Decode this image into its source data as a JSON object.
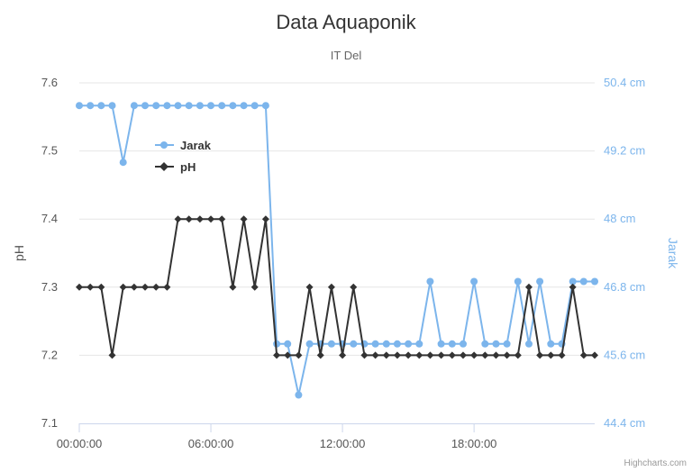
{
  "chart_data": {
    "type": "line",
    "title": "Data Aquaponik",
    "subtitle": "IT Del",
    "credits": "Highcharts.com",
    "grid": true,
    "legend": {
      "placement": "top-left-inside",
      "order": [
        "Jarak",
        "pH"
      ]
    },
    "x_axis": {
      "unit": "hour",
      "range": [
        0,
        24
      ],
      "tick_values": [
        0,
        6,
        12,
        18
      ],
      "tick_labels": [
        "00:00:00",
        "06:00:00",
        "12:00:00",
        "18:00:00"
      ]
    },
    "y_left": {
      "label": "pH",
      "range": [
        7.1,
        7.6
      ],
      "tick_values": [
        7.1,
        7.2,
        7.3,
        7.4,
        7.5,
        7.6
      ],
      "tick_labels": [
        "7.1",
        "7.2",
        "7.3",
        "7.4",
        "7.5",
        "7.6"
      ],
      "color": "#555555"
    },
    "y_right": {
      "label": "Jarak",
      "range": [
        44.4,
        50.4
      ],
      "tick_values": [
        44.4,
        45.6,
        46.8,
        48,
        49.2,
        50.4
      ],
      "tick_labels": [
        "44.4 cm",
        "45.6 cm",
        "46.8 cm",
        "48 cm",
        "49.2 cm",
        "50.4 cm"
      ],
      "color": "#7cb5ec"
    },
    "series": [
      {
        "name": "Jarak",
        "axis": "right",
        "color": "#7cb5ec",
        "marker": "circle",
        "x": [
          0,
          0.5,
          1,
          1.5,
          2,
          2.5,
          3,
          3.5,
          4,
          4.5,
          5,
          5.5,
          6,
          6.5,
          7,
          7.5,
          8,
          8.5,
          9,
          9.5,
          10,
          10.5,
          11,
          11.5,
          12,
          12.5,
          13,
          13.5,
          14,
          14.5,
          15,
          15.5,
          16,
          16.5,
          17,
          17.5,
          18,
          18.5,
          19,
          19.5,
          20,
          20.5,
          21,
          21.5,
          22,
          22.5,
          23,
          23.5
        ],
        "y": [
          50,
          50,
          50,
          50,
          49,
          50,
          50,
          50,
          50,
          50,
          50,
          50,
          50,
          50,
          50,
          50,
          50,
          50,
          45.8,
          45.8,
          44.9,
          45.8,
          45.8,
          45.8,
          45.8,
          45.8,
          45.8,
          45.8,
          45.8,
          45.8,
          45.8,
          45.8,
          46.9,
          45.8,
          45.8,
          45.8,
          46.9,
          45.8,
          45.8,
          45.8,
          46.9,
          45.8,
          46.9,
          45.8,
          45.8,
          46.9,
          46.9,
          46.9
        ]
      },
      {
        "name": "pH",
        "axis": "left",
        "color": "#333333",
        "marker": "diamond",
        "x": [
          0,
          0.5,
          1,
          1.5,
          2,
          2.5,
          3,
          3.5,
          4,
          4.5,
          5,
          5.5,
          6,
          6.5,
          7,
          7.5,
          8,
          8.5,
          9,
          9.5,
          10,
          10.5,
          11,
          11.5,
          12,
          12.5,
          13,
          13.5,
          14,
          14.5,
          15,
          15.5,
          16,
          16.5,
          17,
          17.5,
          18,
          18.5,
          19,
          19.5,
          20,
          20.5,
          21,
          21.5,
          22,
          22.5,
          23,
          23.5
        ],
        "y": [
          7.3,
          7.3,
          7.3,
          7.2,
          7.3,
          7.3,
          7.3,
          7.3,
          7.3,
          7.4,
          7.4,
          7.4,
          7.4,
          7.4,
          7.3,
          7.4,
          7.3,
          7.4,
          7.2,
          7.2,
          7.2,
          7.3,
          7.2,
          7.3,
          7.2,
          7.3,
          7.2,
          7.2,
          7.2,
          7.2,
          7.2,
          7.2,
          7.2,
          7.2,
          7.2,
          7.2,
          7.2,
          7.2,
          7.2,
          7.2,
          7.2,
          7.3,
          7.2,
          7.2,
          7.2,
          7.3,
          7.2,
          7.2
        ]
      }
    ]
  }
}
